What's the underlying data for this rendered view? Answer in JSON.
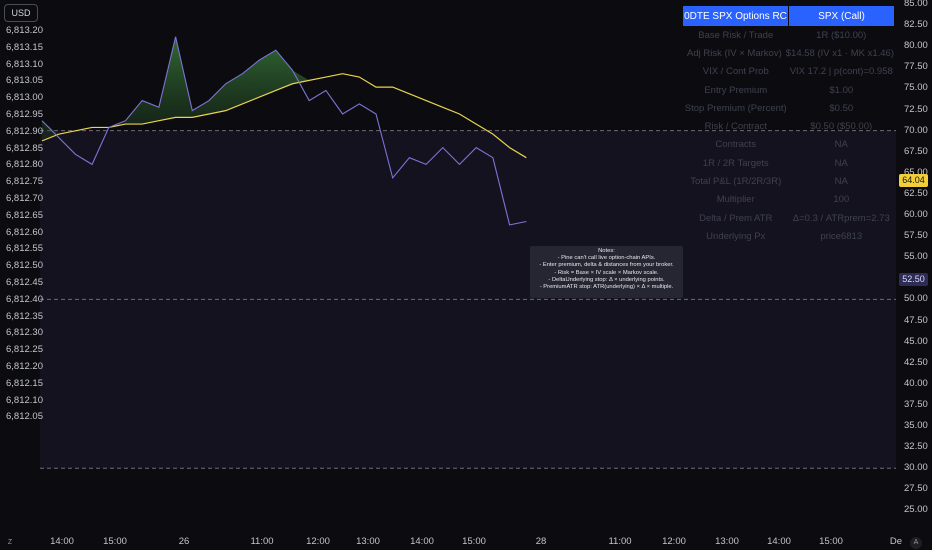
{
  "currency_button": "USD",
  "left_axis": [
    "6,813.20",
    "6,813.15",
    "6,813.10",
    "6,813.05",
    "6,813.00",
    "6,812.95",
    "6,812.90",
    "6,812.85",
    "6,812.80",
    "6,812.75",
    "6,812.70",
    "6,812.65",
    "6,812.60",
    "6,812.55",
    "6,812.50",
    "6,812.45",
    "6,812.40",
    "6,812.35",
    "6,812.30",
    "6,812.25",
    "6,812.20",
    "6,812.15",
    "6,812.10",
    "6,812.05"
  ],
  "right_axis": [
    "85.00",
    "82.50",
    "80.00",
    "77.50",
    "75.00",
    "72.50",
    "70.00",
    "67.50",
    "65.00",
    "62.50",
    "60.00",
    "57.50",
    "55.00",
    "52.50",
    "50.00",
    "47.50",
    "45.00",
    "42.50",
    "40.00",
    "37.50",
    "35.00",
    "32.50",
    "30.00",
    "27.50",
    "25.00"
  ],
  "x_axis": [
    "14:00",
    "15:00",
    "26",
    "11:00",
    "12:00",
    "13:00",
    "14:00",
    "15:00",
    "28",
    "11:00",
    "12:00",
    "13:00",
    "14:00",
    "15:00",
    "De"
  ],
  "price_tags": {
    "current": "64.04",
    "level": "52.50"
  },
  "table": {
    "header": [
      "0DTE SPX Options RC",
      "SPX (Call)"
    ],
    "rows": [
      [
        "Base Risk / Trade",
        "1R ($10.00)"
      ],
      [
        "Adj Risk (IV × Markov)",
        "$14.58 (IV x1 · MK x1.46)"
      ],
      [
        "VIX / Cont Prob",
        "VIX 17.2 | p(cont)=0.958"
      ],
      [
        "Entry Premium",
        "$1.00"
      ],
      [
        "Stop Premium (Percent)",
        "$0.50"
      ],
      [
        "Risk / Contract",
        "$0.50 ($50.00)"
      ],
      [
        "Contracts",
        "NA"
      ],
      [
        "1R / 2R Targets",
        "NA"
      ],
      [
        "Total P&L (1R/2R/3R)",
        "NA"
      ],
      [
        "Multiplier",
        "100"
      ],
      [
        "Delta / Prem ATR",
        "Δ=0.3 / ATRprem=2.73"
      ],
      [
        "Underlying Px",
        "price6813"
      ]
    ]
  },
  "notes": [
    "Notes:",
    "- Pine can't call live option-chain APIs.",
    "- Enter premium, delta & distances from your broker.",
    "- Risk = Base × IV scale × Markov scale.",
    "- DeltaUnderlying stop: Δ × underlying points.",
    "- PremiumATR stop: ATR(underlying) × Δ × multiple."
  ],
  "corner_left": "Z",
  "corner_right": "A",
  "chart_data": {
    "type": "line",
    "left_ylim": [
      6812.05,
      6813.2
    ],
    "right_ylim": [
      25.0,
      85.0
    ],
    "x_categories": [
      "14:00",
      "15:00",
      "26",
      "11:00",
      "12:00",
      "13:00",
      "14:00",
      "15:00",
      "28",
      "11:00",
      "12:00",
      "13:00",
      "14:00",
      "15:00",
      "De"
    ],
    "horizontal_levels_right_axis": [
      70.0,
      50.0,
      30.0
    ],
    "colors": {
      "price_line": "#7b74d6",
      "ma_line": "#e8d44d",
      "fill_above": "#2b5d2b",
      "band": "#15121f",
      "level_line": "#6f6a73"
    },
    "series": [
      {
        "x": [
          0,
          1,
          2,
          3,
          4,
          5,
          6,
          7,
          8,
          9,
          10,
          11,
          12,
          13,
          14,
          15,
          16,
          17,
          18,
          19,
          20,
          21,
          22,
          23,
          24,
          25,
          26,
          27,
          28,
          29
        ],
        "values": [
          6812.93,
          6812.88,
          6812.83,
          6812.8,
          6812.91,
          6812.93,
          6812.99,
          6812.97,
          6813.18,
          6812.96,
          6812.99,
          6813.04,
          6813.07,
          6813.11,
          6813.14,
          6813.08,
          6812.99,
          6813.02,
          6812.95,
          6812.98,
          6812.95,
          6812.76,
          6812.82,
          6812.8,
          6812.85,
          6812.8,
          6812.85,
          6812.82,
          6812.62,
          6812.63
        ]
      },
      {
        "x": [
          0,
          1,
          2,
          3,
          4,
          5,
          6,
          7,
          8,
          9,
          10,
          11,
          12,
          13,
          14,
          15,
          16,
          17,
          18,
          19,
          20,
          21,
          22,
          23,
          24,
          25,
          26,
          27,
          28,
          29
        ],
        "values": [
          6812.87,
          6812.89,
          6812.9,
          6812.91,
          6812.91,
          6812.92,
          6812.92,
          6812.93,
          6812.94,
          6812.94,
          6812.95,
          6812.96,
          6812.98,
          6813.0,
          6813.02,
          6813.04,
          6813.05,
          6813.06,
          6813.07,
          6813.06,
          6813.03,
          6813.03,
          6813.01,
          6812.99,
          6812.97,
          6812.95,
          6812.92,
          6812.89,
          6812.85,
          6812.82
        ]
      }
    ]
  }
}
